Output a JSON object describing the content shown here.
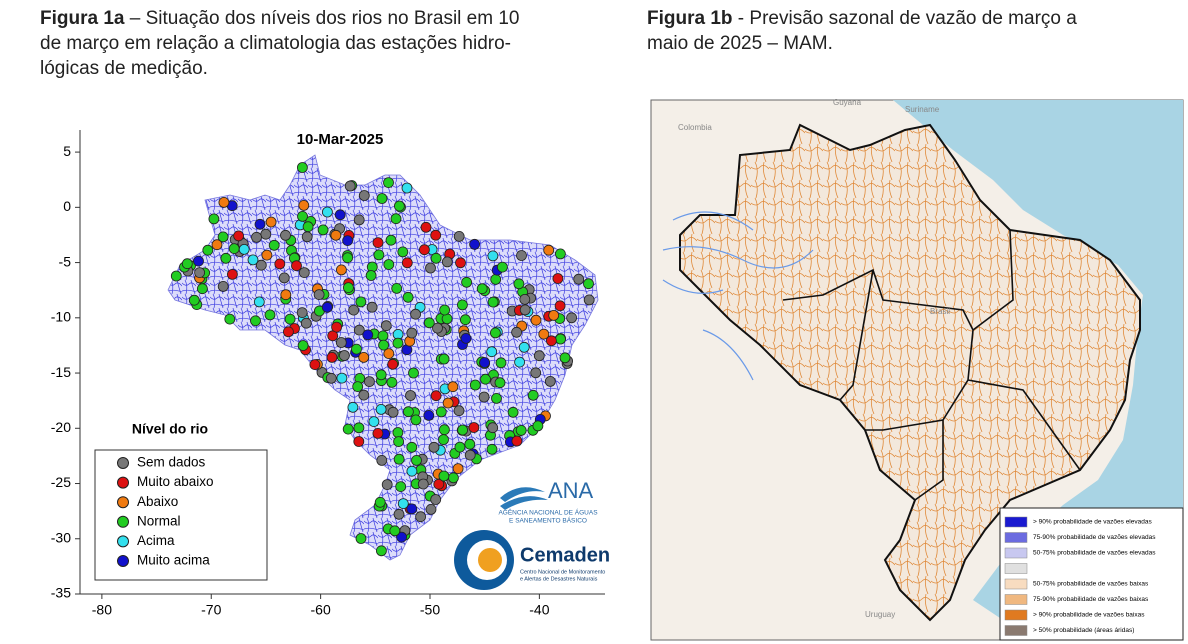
{
  "figures": [
    {
      "caption": {
        "label": "Figura 1a",
        "lines": [
          "– Situação dos níveis dos rios no Brasil em 10",
          "de março em relação a climatologia das estações hidro-",
          "lógicas de medição."
        ]
      },
      "map": {
        "title": "10-Mar-2025",
        "xlim": [
          -82,
          -34
        ],
        "ylim": [
          -35,
          7
        ],
        "xticks": [
          -80,
          -70,
          -60,
          -50,
          -40
        ],
        "yticks": [
          5,
          0,
          -5,
          -10,
          -15,
          -20,
          -25,
          -30,
          -35
        ],
        "legend": {
          "title": "Nível do rio",
          "entries": [
            {
              "label": "Sem dados",
              "color": "#777777"
            },
            {
              "label": "Muito abaixo",
              "color": "#dd1111"
            },
            {
              "label": "Abaixo",
              "color": "#f07a10"
            },
            {
              "label": "Normal",
              "color": "#22cc22"
            },
            {
              "label": "Acima",
              "color": "#33e0ee"
            },
            {
              "label": "Muito acima",
              "color": "#1111cc"
            }
          ]
        },
        "logos": {
          "ana": "ANA",
          "ana_full": [
            "AGÊNCIA NACIONAL DE ÁGUAS",
            "E SANEAMENTO BÁSICO"
          ],
          "cemaden": "Cemaden",
          "cemaden_full": [
            "Centro Nacional de Monitoramento",
            "e Alertas de Desastres Naturais"
          ]
        }
      }
    },
    {
      "caption": {
        "label": "Figura 1b",
        "lines": [
          "- Previsão sazonal de vazão de março a",
          "maio de 2025 – MAM."
        ]
      },
      "map": {
        "places": [
          "Colombia",
          "Guyana",
          "Suriname",
          "Brasil",
          "Uruguay"
        ],
        "legend": {
          "entries": [
            {
              "label": ">  90% probabilidade de vazões elevadas",
              "color": "#1a1ad0"
            },
            {
              "label": "75-90% probabilidade de vazões elevadas",
              "color": "#6b6be0"
            },
            {
              "label": "50-75% probabilidade de vazões elevadas",
              "color": "#c8c8f0"
            },
            {
              "color": "#e0e0e0"
            },
            {
              "label": "50-75% probabilidade de vazões baixas",
              "color": "#f8dcc0"
            },
            {
              "label": "75-90% probabilidade de vazões baixas",
              "color": "#f0b880"
            },
            {
              "label": ">  90% probabilidade de vazões baixas",
              "color": "#e07a20"
            },
            {
              "label": ">  50% probabilidade (áreas áridas)",
              "color": "#8a7a70"
            }
          ]
        }
      }
    }
  ]
}
